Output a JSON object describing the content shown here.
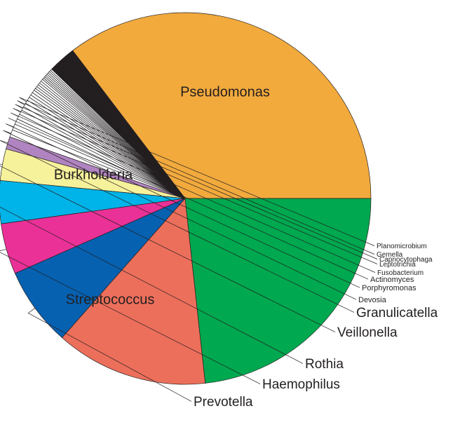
{
  "chart_data": {
    "type": "pie",
    "title": "",
    "slices": [
      {
        "label": "Pseudomonas",
        "value": 36.0,
        "color": "#f2aa3d",
        "label_inside": true
      },
      {
        "label": "",
        "value": 0.4,
        "color": "#231f20"
      },
      {
        "label": "",
        "value": 0.3,
        "color": "#231f20"
      },
      {
        "label": "",
        "value": 0.3,
        "color": "#231f20"
      },
      {
        "label": "",
        "value": 0.3,
        "color": "#231f20"
      },
      {
        "label": "",
        "value": 0.25,
        "color": "#231f20"
      },
      {
        "label": "",
        "value": 0.2,
        "color": "#231f20"
      },
      {
        "label": "",
        "value": 0.2,
        "color": "#231f20"
      },
      {
        "label": "",
        "value": 0.2,
        "color": "#231f20"
      },
      {
        "label": "",
        "value": 0.15,
        "color": "#231f20"
      },
      {
        "label": "",
        "value": 0.15,
        "color": "#231f20"
      },
      {
        "label": "",
        "value": 0.15,
        "color": "#ffffff"
      },
      {
        "label": "",
        "value": 0.15,
        "color": "#ffffff"
      },
      {
        "label": "",
        "value": 0.15,
        "color": "#ffffff"
      },
      {
        "label": "",
        "value": 0.15,
        "color": "#ffffff"
      },
      {
        "label": "",
        "value": 0.15,
        "color": "#ffffff"
      },
      {
        "label": "",
        "value": 0.15,
        "color": "#ffffff"
      },
      {
        "label": "",
        "value": 0.15,
        "color": "#ffffff"
      },
      {
        "label": "",
        "value": 0.15,
        "color": "#ffffff"
      },
      {
        "label": "",
        "value": 0.2,
        "color": "#ffffff"
      },
      {
        "label": "",
        "value": 0.2,
        "color": "#ffffff"
      },
      {
        "label": "",
        "value": 0.2,
        "color": "#ffffff"
      },
      {
        "label": "",
        "value": 0.2,
        "color": "#ffffff"
      },
      {
        "label": "",
        "value": 0.2,
        "color": "#ffffff"
      },
      {
        "label": "",
        "value": 0.2,
        "color": "#ffffff"
      },
      {
        "label": "",
        "value": 0.25,
        "color": "#ffffff"
      },
      {
        "label": "",
        "value": 0.25,
        "color": "#ffffff"
      },
      {
        "label": "",
        "value": 0.25,
        "color": "#ffffff"
      },
      {
        "label": "",
        "value": 0.3,
        "color": "#ffffff"
      },
      {
        "label": "Planomicrobium",
        "value": 0.3,
        "color": "#ffffff"
      },
      {
        "label": "Gemella",
        "value": 0.35,
        "color": "#ffffff"
      },
      {
        "label": "Capnocytophaga",
        "value": 0.35,
        "color": "#ffffff"
      },
      {
        "label": "Leptotrichia",
        "value": 0.4,
        "color": "#ffffff"
      },
      {
        "label": "Fusobacterium",
        "value": 0.45,
        "color": "#ffffff"
      },
      {
        "label": "Actinomyces",
        "value": 0.5,
        "color": "#ffffff"
      },
      {
        "label": "Porphyromonas",
        "value": 0.55,
        "color": "#ffffff"
      },
      {
        "label": "Devosia",
        "value": 0.65,
        "color": "#ffffff"
      },
      {
        "label": "Granulicatella",
        "value": 1.1,
        "color": "#b084c0"
      },
      {
        "label": "Veillonella",
        "value": 2.8,
        "color": "#f6f19b"
      },
      {
        "label": "Rothia",
        "value": 3.8,
        "color": "#00b3e8"
      },
      {
        "label": "Haemophilus",
        "value": 4.5,
        "color": "#ea3197"
      },
      {
        "label": "Prevotella",
        "value": 7.0,
        "color": "#0661b1"
      },
      {
        "label": "Streptococcus",
        "value": 13.5,
        "color": "#ec6f5b",
        "label_inside": true
      },
      {
        "label": "Burkholderia",
        "value": 23.7,
        "color": "#00a84f",
        "label_inside": true
      }
    ]
  }
}
